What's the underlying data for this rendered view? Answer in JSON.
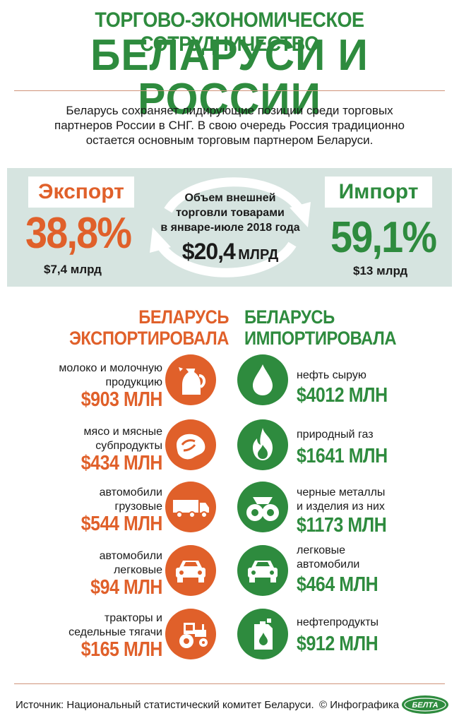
{
  "header": {
    "title_line1": "ТОРГОВО-ЭКОНОМИЧЕСКОЕ СОТРУДНИЧЕСТВО",
    "title_line2": "БЕЛАРУСИ И РОССИИ"
  },
  "lead": {
    "line1": "Беларусь сохраняет лидирующие позиции среди торговых",
    "line2": "партнеров России в СНГ. В свою очередь Россия традиционно",
    "line3": "остается основным торговым партнером Беларуси."
  },
  "summary": {
    "export": {
      "label": "Экспорт",
      "share": "38,8%",
      "amount": "$7,4 млрд"
    },
    "import": {
      "label": "Импорт",
      "share": "59,1%",
      "amount": "$13 млрд"
    },
    "center": {
      "line1": "Объем внешней",
      "line2": "торговли товарами",
      "line3": "в январе-июле 2018 года",
      "value": "$20,4",
      "unit": "МЛРД"
    }
  },
  "exports": {
    "heading_line1": "БЕЛАРУСЬ",
    "heading_line2": "ЭКСПОРТИРОВАЛА",
    "items": [
      {
        "line1": "молоко и молочную",
        "line2": "продукцию",
        "value": "$903 МЛН",
        "icon": "milk-jug-icon"
      },
      {
        "line1": "мясо и мясные",
        "line2": "субпродукты",
        "value": "$434 МЛН",
        "icon": "steak-icon"
      },
      {
        "line1": "автомобили",
        "line2": "грузовые",
        "value": "$544 МЛН",
        "icon": "truck-icon"
      },
      {
        "line1": "автомобили",
        "line2": "легковые",
        "value": "$94 МЛН",
        "icon": "car-icon"
      },
      {
        "line1": "тракторы и",
        "line2": "седельные тягачи",
        "value": "$165 МЛН",
        "icon": "tractor-icon"
      }
    ]
  },
  "imports": {
    "heading_line1": "БЕЛАРУСЬ",
    "heading_line2": "ИМПОРТИРОВАЛА",
    "items": [
      {
        "line1": "нефть сырую",
        "line2": "",
        "value": "$4012 МЛН",
        "icon": "oil-drop-icon"
      },
      {
        "line1": "природный газ",
        "line2": "",
        "value": "$1641 МЛН",
        "icon": "flame-icon"
      },
      {
        "line1": "черные металлы",
        "line2": "и изделия из них",
        "value": "$1173 МЛН",
        "icon": "metal-coils-icon"
      },
      {
        "line1": "легковые",
        "line2": "автомобили",
        "value": "$464 МЛН",
        "icon": "car-icon"
      },
      {
        "line1": "нефтепродукты",
        "line2": "",
        "value": "$912 МЛН",
        "icon": "oil-canister-icon"
      }
    ]
  },
  "footer": {
    "source": "Источник: Национальный статистический комитет Беларуси.",
    "copyright": "© Инфографика",
    "logo_text": "БЕЛТА"
  },
  "colors": {
    "export": "#e0602a",
    "import": "#2e8b3e",
    "band": "#d6e4e0"
  }
}
